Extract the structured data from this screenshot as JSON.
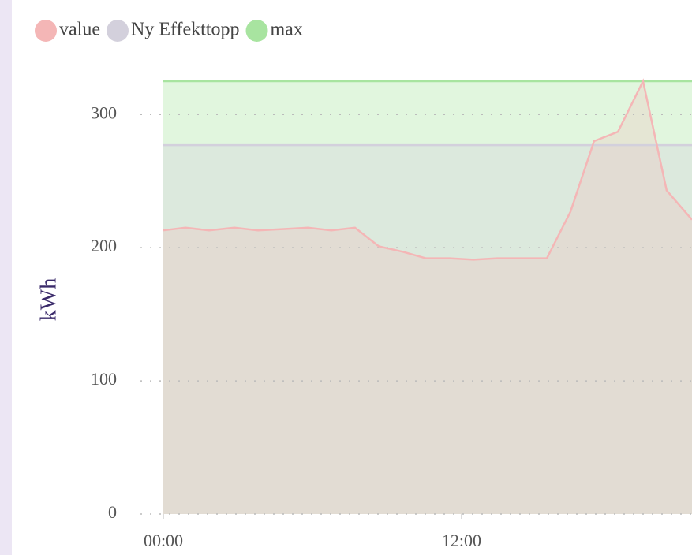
{
  "chart_data": {
    "type": "area",
    "y_label": "kWh",
    "x": [
      0,
      0.89,
      1.84,
      2.86,
      3.81,
      4.86,
      5.81,
      6.76,
      7.71,
      8.67,
      9.62,
      10.57,
      11.52,
      12.48,
      13.43,
      14.38,
      15.43,
      16.38,
      17.33,
      18.29,
      19.3,
      20.25,
      21.27
    ],
    "series": [
      {
        "name": "value",
        "color": "#f4b6b6",
        "values": [
          213,
          215,
          213,
          215,
          213,
          214,
          215,
          213,
          215,
          201,
          197,
          192,
          192,
          191,
          192,
          192,
          192,
          227,
          280,
          287,
          325,
          243,
          221
        ]
      },
      {
        "name": "Ny Effekttopp",
        "color": "#d3d0dc",
        "values": [
          277,
          277,
          277,
          277,
          277,
          277,
          277,
          277,
          277,
          277,
          277,
          277,
          277,
          277,
          277,
          277,
          277,
          277,
          277,
          277,
          277,
          277,
          277
        ]
      },
      {
        "name": "max",
        "color": "#a8e4a0",
        "values": [
          325,
          325,
          325,
          325,
          325,
          325,
          325,
          325,
          325,
          325,
          325,
          325,
          325,
          325,
          325,
          325,
          325,
          325,
          325,
          325,
          325,
          325,
          325
        ]
      }
    ],
    "xlim": [
      0,
      21.27
    ],
    "xticks": [
      {
        "value": 0,
        "label": "00:00"
      },
      {
        "value": 12,
        "label": "12:00"
      }
    ],
    "ylim": [
      0,
      325
    ],
    "yticks": [
      0,
      100,
      200,
      300
    ],
    "grid": true,
    "legend": "top-left"
  }
}
